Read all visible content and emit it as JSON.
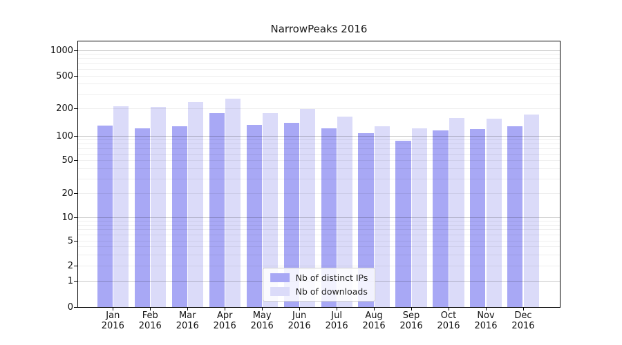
{
  "chart_data": {
    "type": "bar",
    "title": "NarrowPeaks 2016",
    "xlabel": "",
    "ylabel": "",
    "yscale": "symlog",
    "yticks": [
      0,
      1,
      2,
      5,
      10,
      20,
      50,
      100,
      200,
      500,
      1000
    ],
    "ylim": [
      0,
      1100
    ],
    "grid": true,
    "categories": [
      "Jan 2016",
      "Feb 2016",
      "Mar 2016",
      "Apr 2016",
      "May 2016",
      "Jun 2016",
      "Jul 2016",
      "Aug 2016",
      "Sep 2016",
      "Oct 2016",
      "Nov 2016",
      "Dec 2016"
    ],
    "series": [
      {
        "name": "Nb of distinct IPs",
        "color": "#a8a8f5",
        "values": [
          130,
          121,
          129,
          180,
          133,
          140,
          122,
          108,
          88,
          116,
          120,
          127
        ]
      },
      {
        "name": "Nb of downloads",
        "color": "#dbdbf9",
        "values": [
          212,
          209,
          242,
          266,
          180,
          200,
          163,
          127,
          122,
          158,
          154,
          171
        ]
      }
    ],
    "legend_position": "lower center"
  }
}
